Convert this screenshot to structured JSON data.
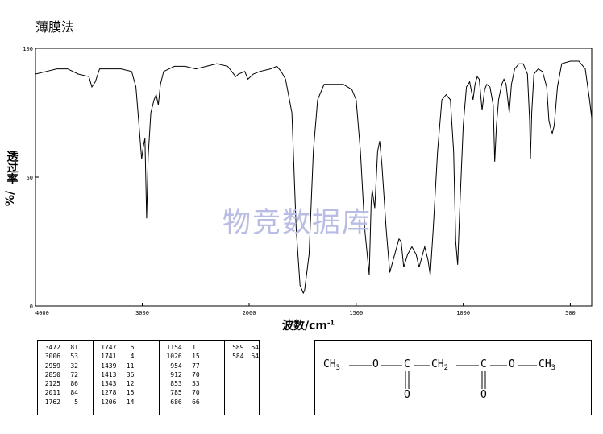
{
  "page": {
    "title": "薄膜法",
    "watermark": "物竞数据库"
  },
  "chart_data": {
    "type": "line",
    "xlabel": "波数/cm",
    "xlabel_sup": "-1",
    "ylabel": "透过率",
    "ylabel_suffix": "%/",
    "xlim": [
      4000,
      400
    ],
    "ylim": [
      0,
      100
    ],
    "xticks": [
      4000,
      3000,
      2000,
      1500,
      1000,
      500
    ],
    "yticks": [
      0,
      50,
      100
    ],
    "grid": false,
    "line_color": "#000000",
    "spectrum": [
      [
        4000,
        90
      ],
      [
        3900,
        91
      ],
      [
        3800,
        92
      ],
      [
        3700,
        92
      ],
      [
        3600,
        90
      ],
      [
        3500,
        89
      ],
      [
        3472,
        85
      ],
      [
        3440,
        87
      ],
      [
        3400,
        92
      ],
      [
        3300,
        92
      ],
      [
        3200,
        92
      ],
      [
        3100,
        91
      ],
      [
        3060,
        85
      ],
      [
        3040,
        75
      ],
      [
        3006,
        57
      ],
      [
        2990,
        62
      ],
      [
        2975,
        65
      ],
      [
        2959,
        34
      ],
      [
        2945,
        58
      ],
      [
        2920,
        75
      ],
      [
        2890,
        80
      ],
      [
        2870,
        82
      ],
      [
        2850,
        78
      ],
      [
        2830,
        86
      ],
      [
        2800,
        91
      ],
      [
        2700,
        93
      ],
      [
        2600,
        93
      ],
      [
        2500,
        92
      ],
      [
        2400,
        93
      ],
      [
        2300,
        94
      ],
      [
        2200,
        93
      ],
      [
        2125,
        89
      ],
      [
        2100,
        90
      ],
      [
        2040,
        91
      ],
      [
        2011,
        88
      ],
      [
        1980,
        90
      ],
      [
        1950,
        91
      ],
      [
        1900,
        92
      ],
      [
        1870,
        93
      ],
      [
        1850,
        91
      ],
      [
        1830,
        88
      ],
      [
        1800,
        75
      ],
      [
        1780,
        30
      ],
      [
        1762,
        8
      ],
      [
        1747,
        5
      ],
      [
        1741,
        6
      ],
      [
        1720,
        20
      ],
      [
        1700,
        60
      ],
      [
        1680,
        80
      ],
      [
        1650,
        86
      ],
      [
        1600,
        86
      ],
      [
        1560,
        86
      ],
      [
        1520,
        84
      ],
      [
        1500,
        80
      ],
      [
        1480,
        60
      ],
      [
        1460,
        30
      ],
      [
        1439,
        12
      ],
      [
        1430,
        40
      ],
      [
        1425,
        45
      ],
      [
        1413,
        38
      ],
      [
        1400,
        60
      ],
      [
        1390,
        64
      ],
      [
        1380,
        55
      ],
      [
        1360,
        30
      ],
      [
        1343,
        13
      ],
      [
        1320,
        20
      ],
      [
        1300,
        26
      ],
      [
        1290,
        25
      ],
      [
        1278,
        15
      ],
      [
        1260,
        20
      ],
      [
        1240,
        23
      ],
      [
        1220,
        20
      ],
      [
        1206,
        15
      ],
      [
        1190,
        20
      ],
      [
        1180,
        23
      ],
      [
        1165,
        18
      ],
      [
        1154,
        12
      ],
      [
        1140,
        30
      ],
      [
        1120,
        60
      ],
      [
        1100,
        80
      ],
      [
        1080,
        82
      ],
      [
        1060,
        80
      ],
      [
        1045,
        60
      ],
      [
        1035,
        25
      ],
      [
        1026,
        16
      ],
      [
        1015,
        40
      ],
      [
        1000,
        70
      ],
      [
        985,
        85
      ],
      [
        970,
        87
      ],
      [
        954,
        80
      ],
      [
        945,
        86
      ],
      [
        935,
        89
      ],
      [
        925,
        88
      ],
      [
        912,
        76
      ],
      [
        900,
        84
      ],
      [
        890,
        86
      ],
      [
        875,
        85
      ],
      [
        860,
        78
      ],
      [
        853,
        56
      ],
      [
        845,
        70
      ],
      [
        835,
        80
      ],
      [
        820,
        86
      ],
      [
        810,
        88
      ],
      [
        800,
        86
      ],
      [
        785,
        75
      ],
      [
        775,
        86
      ],
      [
        760,
        92
      ],
      [
        740,
        94
      ],
      [
        720,
        94
      ],
      [
        700,
        90
      ],
      [
        690,
        72
      ],
      [
        686,
        57
      ],
      [
        680,
        75
      ],
      [
        670,
        90
      ],
      [
        650,
        92
      ],
      [
        630,
        91
      ],
      [
        610,
        85
      ],
      [
        600,
        72
      ],
      [
        589,
        68
      ],
      [
        584,
        67
      ],
      [
        575,
        70
      ],
      [
        560,
        85
      ],
      [
        540,
        94
      ],
      [
        500,
        95
      ],
      [
        460,
        95
      ],
      [
        430,
        92
      ],
      [
        410,
        80
      ],
      [
        400,
        73
      ]
    ]
  },
  "peak_table": [
    [
      [
        "3472",
        "81"
      ],
      [
        "3006",
        "53"
      ],
      [
        "2959",
        "32"
      ],
      [
        "2850",
        "72"
      ],
      [
        "2125",
        "86"
      ],
      [
        "2011",
        "84"
      ],
      [
        "1762",
        "5"
      ]
    ],
    [
      [
        "1747",
        "5"
      ],
      [
        "1741",
        "4"
      ],
      [
        "1439",
        "11"
      ],
      [
        "1413",
        "36"
      ],
      [
        "1343",
        "12"
      ],
      [
        "1278",
        "15"
      ],
      [
        "1206",
        "14"
      ]
    ],
    [
      [
        "1154",
        "11"
      ],
      [
        "1026",
        "15"
      ],
      [
        "954",
        "77"
      ],
      [
        "912",
        "70"
      ],
      [
        "853",
        "53"
      ],
      [
        "785",
        "70"
      ],
      [
        "686",
        "66"
      ]
    ],
    [
      [
        "589",
        "64"
      ],
      [
        "584",
        "64"
      ]
    ]
  ],
  "structure": {
    "ch3_left": "CH",
    "sub3_left": "3",
    "o_left": "O",
    "c1": "C",
    "ch2": "CH",
    "sub2": "2",
    "c2": "C",
    "o_right": "O",
    "ch3_right": "CH",
    "sub3_right": "3",
    "o_dbl1": "O",
    "o_dbl2": "O"
  }
}
